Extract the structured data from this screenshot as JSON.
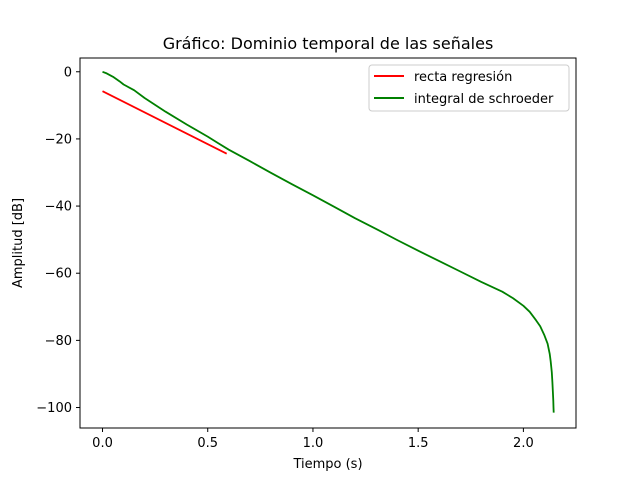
{
  "chart_data": {
    "type": "line",
    "title": "Gráfico: Dominio temporal de las señales",
    "xlabel": "Tiempo (s)",
    "ylabel": "Amplitud [dB]",
    "xlim": [
      -0.107,
      2.25
    ],
    "ylim": [
      -106.1,
      4.1
    ],
    "xticks": [
      0.0,
      0.5,
      1.0,
      1.5,
      2.0
    ],
    "xtick_labels": [
      "0.0",
      "0.5",
      "1.0",
      "1.5",
      "2.0"
    ],
    "yticks": [
      0,
      -20,
      -40,
      -60,
      -80,
      -100
    ],
    "ytick_labels": [
      "0",
      "−20",
      "−40",
      "−60",
      "−80",
      "−100"
    ],
    "grid": false,
    "legend_position": "top-right",
    "series": [
      {
        "name": "recta regresión",
        "color": "#ff0000",
        "x": [
          0.0,
          0.59
        ],
        "y": [
          -5.8,
          -24.4
        ]
      },
      {
        "name": "integral de schroeder",
        "color": "#008000",
        "x": [
          0.0,
          0.02,
          0.05,
          0.08,
          0.1,
          0.15,
          0.2,
          0.3,
          0.4,
          0.5,
          0.55,
          0.6,
          0.7,
          0.8,
          0.9,
          1.0,
          1.1,
          1.2,
          1.3,
          1.4,
          1.5,
          1.6,
          1.7,
          1.8,
          1.9,
          1.95,
          2.0,
          2.03,
          2.06,
          2.08,
          2.1,
          2.115,
          2.125,
          2.13,
          2.135,
          2.138,
          2.14,
          2.142,
          2.143,
          2.144
        ],
        "y": [
          0.0,
          -0.5,
          -1.5,
          -2.8,
          -3.8,
          -5.5,
          -7.8,
          -11.9,
          -15.7,
          -19.3,
          -21.3,
          -23.2,
          -26.6,
          -30.1,
          -33.5,
          -36.8,
          -40.2,
          -43.6,
          -46.8,
          -50.1,
          -53.3,
          -56.4,
          -59.5,
          -62.6,
          -65.5,
          -67.4,
          -69.7,
          -71.5,
          -74.0,
          -75.8,
          -78.5,
          -81.0,
          -84.0,
          -86.3,
          -89.5,
          -92.5,
          -95.5,
          -98.0,
          -100.0,
          -101.5
        ]
      }
    ]
  }
}
